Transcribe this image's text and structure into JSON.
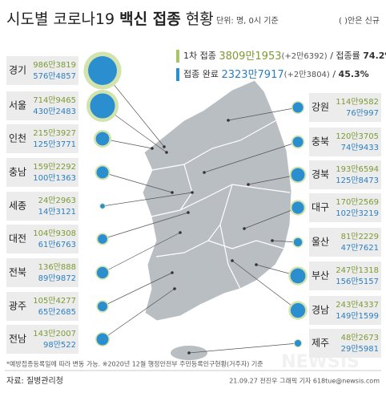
{
  "chart_data": {
    "type": "bubble-map",
    "title": "시도별 코로나19",
    "title_bold": "백신 접종",
    "title_end": "현황",
    "unit_note": "단위: 명, 0시 기준",
    "paren_note": "( )안은 신규",
    "summary": [
      {
        "label": "1차 접종",
        "total": "3809만1953",
        "new": "(+2만6392)",
        "rate_label": "/ 접종률",
        "rate": "74.2%"
      },
      {
        "label": "접종 완료",
        "total": "2323만7917",
        "new": "(+2만3804)",
        "rate_label": "/",
        "rate": "45.3%"
      }
    ],
    "categories": [
      "경기",
      "서울",
      "인천",
      "충남",
      "세종",
      "대전",
      "전북",
      "광주",
      "전남",
      "강원",
      "충북",
      "경북",
      "대구",
      "울산",
      "부산",
      "경남",
      "제주"
    ],
    "series": [
      {
        "name": "1차 접종",
        "color": "#d3e3ae",
        "values": [
          9863819,
          7149465,
          2153927,
          1592292,
          242963,
          1049308,
          1360888,
          1054277,
          1432007,
          1149582,
          1203705,
          1936594,
          1702569,
          812229,
          2471318,
          2434337,
          482673
        ],
        "value_labels": [
          "986만3819",
          "714만9465",
          "215만3927",
          "159만2292",
          "24만2963",
          "104만9308",
          "136만888",
          "105만4277",
          "143만2007",
          "114만9582",
          "120만3705",
          "193만6594",
          "170만2569",
          "81만2229",
          "247만1318",
          "243만4337",
          "48만2673"
        ]
      },
      {
        "name": "접종 완료",
        "color": "#2b8fcf",
        "values": [
          5764857,
          4302483,
          1253771,
          1001363,
          143121,
          616763,
          899872,
          652685,
          980522,
          760997,
          749433,
          1258473,
          1023219,
          477621,
          1565157,
          1491599,
          295981
        ],
        "value_labels": [
          "576만4857",
          "430만2483",
          "125만3771",
          "100만1363",
          "14만3121",
          "61만6763",
          "89만9872",
          "65만2685",
          "98만522",
          "76만997",
          "74만9433",
          "125만8473",
          "102만3219",
          "47만7621",
          "156만5157",
          "149만1599",
          "29만5981"
        ]
      }
    ],
    "footnote": "*예방접종등록일에 따라 변동 가능. ※2020년 12월 행정안전부 주민등록인구현황(거주자) 기준",
    "source": "자료: 질병관리청",
    "credit": "21.09.27 전진우 그래픽 기자 618tue@newsis.com",
    "watermark": "NEWSIS"
  }
}
